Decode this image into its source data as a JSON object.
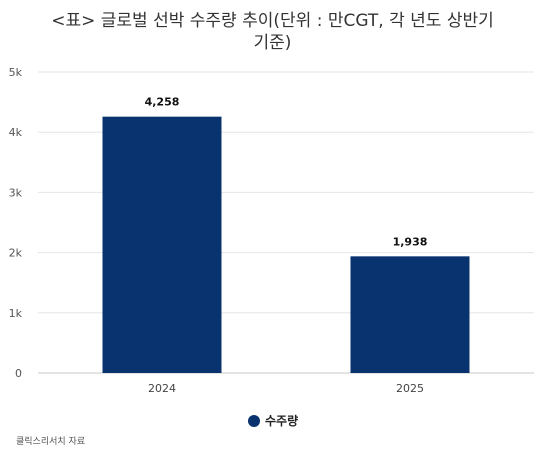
{
  "chart_data": {
    "type": "bar",
    "title_line1": "<표> 글로벌 선박 수주량 추이(단위 : 만CGT, 각 년도 상반기",
    "title_line2": "기준)",
    "categories": [
      "2024",
      "2025"
    ],
    "series": [
      {
        "name": "수주량",
        "values": [
          4258,
          1938
        ],
        "color": "#08336e"
      }
    ],
    "data_labels": [
      "4,258",
      "1,938"
    ],
    "y_ticks": [
      "0",
      "1k",
      "2k",
      "3k",
      "4k",
      "5k"
    ],
    "ylim": [
      0,
      5000
    ],
    "grid": true,
    "legend_position": "bottom"
  },
  "source": "클릭스리서치 자료"
}
